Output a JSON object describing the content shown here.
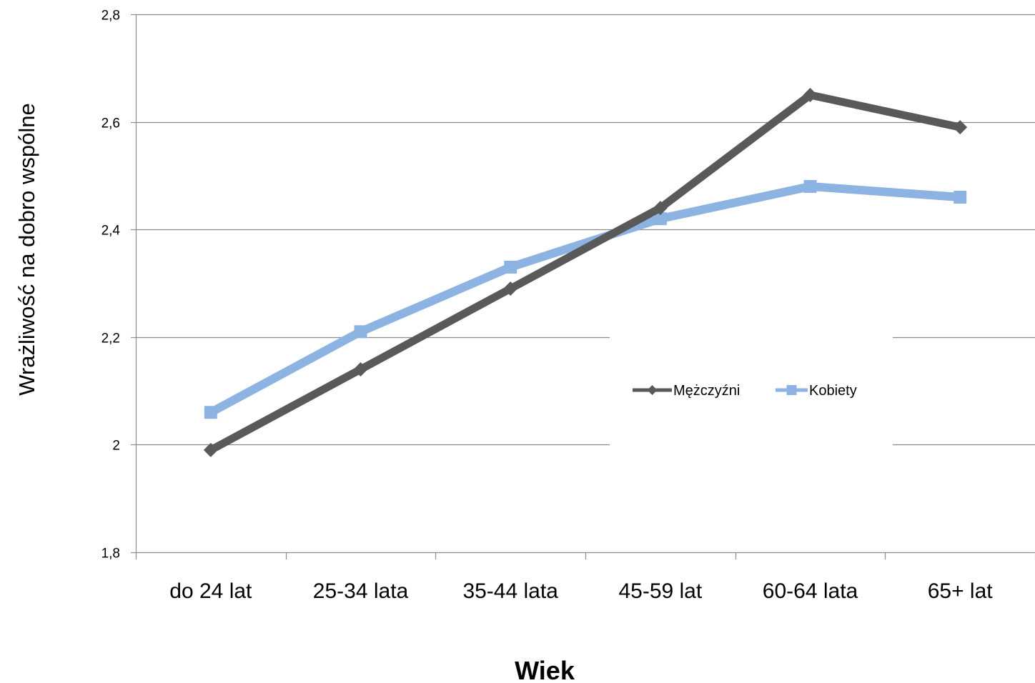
{
  "chart_data": {
    "type": "line",
    "title": "",
    "xlabel": "Wiek",
    "ylabel": "Wrażliwość na dobro wspólne",
    "categories": [
      "do 24 lat",
      "25-34 lata",
      "35-44 lata",
      "45-59 lat",
      "60-64 lata",
      "65+ lat"
    ],
    "ylim": [
      1.8,
      2.8
    ],
    "yticks": [
      1.8,
      2.0,
      2.2,
      2.4,
      2.6,
      2.8
    ],
    "ytick_labels": [
      "1,8",
      "2",
      "2,2",
      "2,4",
      "2,6",
      "2,8"
    ],
    "grid": true,
    "legend_position": "center-right",
    "series": [
      {
        "name": "Mężczyźni",
        "values": [
          1.99,
          2.14,
          2.29,
          2.44,
          2.65,
          2.59
        ],
        "color": "#595959",
        "marker": "diamond"
      },
      {
        "name": "Kobiety",
        "values": [
          2.06,
          2.21,
          2.33,
          2.42,
          2.48,
          2.46
        ],
        "color": "#8db3e2",
        "marker": "square"
      }
    ]
  }
}
